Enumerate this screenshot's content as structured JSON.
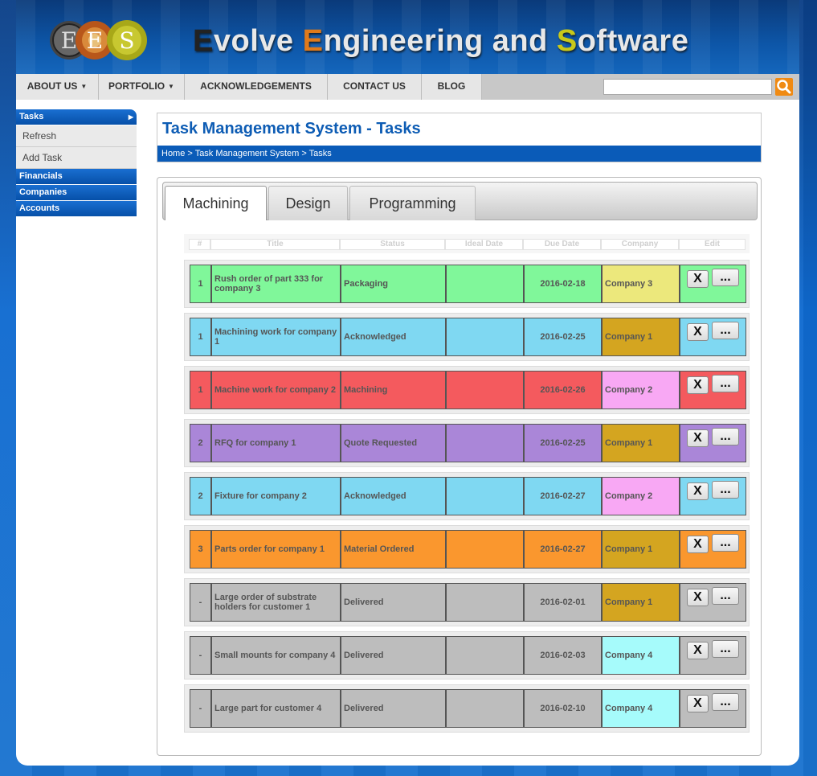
{
  "site": {
    "title_first_letters": [
      "E",
      "E",
      "S"
    ],
    "title_parts": [
      "volve ",
      "ngineering and ",
      "oftware"
    ]
  },
  "nav": {
    "items": [
      {
        "label": "ABOUT US",
        "dropdown": true
      },
      {
        "label": "PORTFOLIO",
        "dropdown": true
      },
      {
        "label": "ACKNOWLEDGEMENTS",
        "dropdown": false
      },
      {
        "label": "CONTACT US",
        "dropdown": false
      },
      {
        "label": "BLOG",
        "dropdown": false
      }
    ],
    "search_value": ""
  },
  "sidebar": {
    "tasks": "Tasks",
    "refresh": "Refresh",
    "add_task": "Add Task",
    "financials": "Financials",
    "companies": "Companies",
    "accounts": "Accounts"
  },
  "page": {
    "title": "Task Management System - Tasks",
    "breadcrumb": [
      "Home",
      "Task Management System",
      "Tasks"
    ],
    "breadcrumb_sep": " > "
  },
  "tabs": [
    {
      "label": "Machining",
      "active": true
    },
    {
      "label": "Design",
      "active": false
    },
    {
      "label": "Programming",
      "active": false
    }
  ],
  "table": {
    "headers": [
      "#",
      "Title",
      "Status",
      "Ideal Date",
      "Due Date",
      "Company",
      "Edit"
    ],
    "delete_label": "X",
    "more_label": "...",
    "rows": [
      {
        "num": "1",
        "title": "Rush order of part 333 for company 3",
        "status": "Packaging",
        "ideal": "",
        "due": "2016-02-18",
        "company": "Company 3",
        "row_color": "#80f79a",
        "company_color": "#ece87c"
      },
      {
        "num": "1",
        "title": "Machining work for company 1",
        "status": "Acknowledged",
        "ideal": "",
        "due": "2016-02-25",
        "company": "Company 1",
        "row_color": "#7fd8f2",
        "company_color": "#d4a520"
      },
      {
        "num": "1",
        "title": "Machine work for company 2",
        "status": "Machining",
        "ideal": "",
        "due": "2016-02-26",
        "company": "Company 2",
        "row_color": "#f45a5e",
        "company_color": "#f8a8f4"
      },
      {
        "num": "2",
        "title": "RFQ for company 1",
        "status": "Quote Requested",
        "ideal": "",
        "due": "2016-02-25",
        "company": "Company 1",
        "row_color": "#aa86d8",
        "company_color": "#d4a520"
      },
      {
        "num": "2",
        "title": "Fixture for company 2",
        "status": "Acknowledged",
        "ideal": "",
        "due": "2016-02-27",
        "company": "Company 2",
        "row_color": "#7fd8f2",
        "company_color": "#f8a8f4"
      },
      {
        "num": "3",
        "title": "Parts order for company 1",
        "status": "Material Ordered",
        "ideal": "",
        "due": "2016-02-27",
        "company": "Company 1",
        "row_color": "#fa972e",
        "company_color": "#d4a520"
      },
      {
        "num": "-",
        "title": "Large order of substrate holders for customer 1",
        "status": "Delivered",
        "ideal": "",
        "due": "2016-02-01",
        "company": "Company 1",
        "row_color": "#bdbdbd",
        "company_color": "#d4a520"
      },
      {
        "num": "-",
        "title": "Small mounts for company 4",
        "status": "Delivered",
        "ideal": "",
        "due": "2016-02-03",
        "company": "Company 4",
        "row_color": "#bdbdbd",
        "company_color": "#a6fbfb"
      },
      {
        "num": "-",
        "title": "Large part for customer 4",
        "status": "Delivered",
        "ideal": "",
        "due": "2016-02-10",
        "company": "Company 4",
        "row_color": "#bdbdbd",
        "company_color": "#a6fbfb"
      }
    ]
  },
  "colors": {
    "brand_blue": "#0d5cb4",
    "search_orange": "#f08a12"
  }
}
